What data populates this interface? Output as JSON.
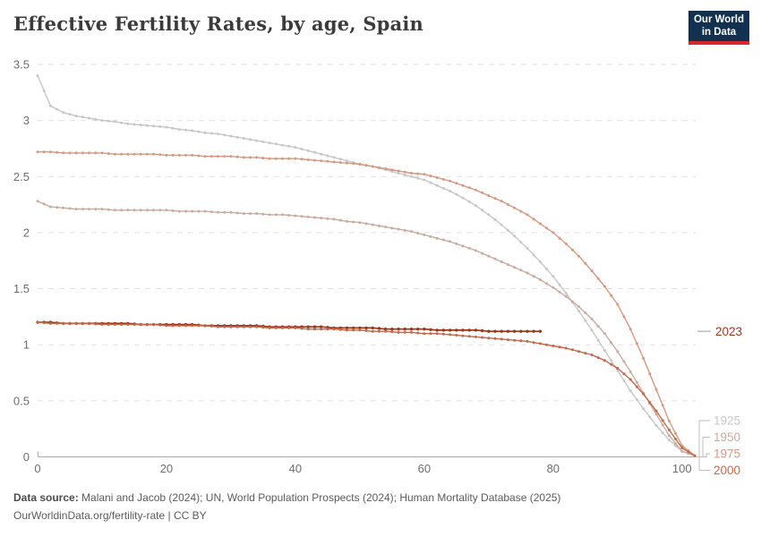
{
  "header": {
    "title": "Effective Fertility Rates, by age, Spain",
    "logo": {
      "line1": "Our World",
      "line2": "in Data",
      "bg_color": "#12304f",
      "accent_color": "#d7282f"
    }
  },
  "footer": {
    "datasource_label": "Data source:",
    "datasource_text": " Malani and Jacob (2024); UN, World Population Prospects (2024); Human Mortality Database (2025)",
    "license_line": "OurWorldinData.org/fertility-rate | CC BY"
  },
  "chart_data": {
    "type": "line",
    "title": "Effective Fertility Rates, by age, Spain",
    "xlabel": "",
    "ylabel": "",
    "xlim": [
      0,
      102
    ],
    "ylim": [
      0,
      3.5
    ],
    "x_ticks": [
      0,
      20,
      40,
      60,
      80,
      100
    ],
    "y_ticks": [
      0,
      0.5,
      1,
      1.5,
      2,
      2.5,
      3,
      3.5
    ],
    "grid": "horizontal-dashed",
    "legend_position": "labels-at-right-edge",
    "axis_color": "#a9a9a9",
    "grid_color": "#e2e2e2",
    "tick_label_color": "#6e6e6e",
    "connector_color": "#bdbdbd",
    "series": [
      {
        "name": "1925",
        "color": "#c7c7c7",
        "age_start": 0,
        "age_step": 2,
        "values": [
          3.4,
          3.13,
          3.07,
          3.04,
          3.02,
          3.0,
          2.99,
          2.97,
          2.96,
          2.95,
          2.94,
          2.92,
          2.91,
          2.89,
          2.88,
          2.86,
          2.84,
          2.82,
          2.8,
          2.78,
          2.76,
          2.73,
          2.7,
          2.67,
          2.64,
          2.61,
          2.59,
          2.56,
          2.53,
          2.5,
          2.47,
          2.42,
          2.37,
          2.31,
          2.24,
          2.16,
          2.07,
          1.97,
          1.86,
          1.74,
          1.61,
          1.46,
          1.3,
          1.13,
          0.95,
          0.77,
          0.59,
          0.43,
          0.28,
          0.15,
          0.05,
          0.01
        ]
      },
      {
        "name": "1950",
        "color": "#c9aca1",
        "age_start": 0,
        "age_step": 2,
        "values": [
          2.28,
          2.23,
          2.22,
          2.21,
          2.21,
          2.21,
          2.2,
          2.2,
          2.2,
          2.2,
          2.2,
          2.19,
          2.19,
          2.19,
          2.18,
          2.18,
          2.17,
          2.17,
          2.16,
          2.16,
          2.15,
          2.14,
          2.13,
          2.12,
          2.1,
          2.09,
          2.07,
          2.05,
          2.03,
          2.01,
          1.98,
          1.95,
          1.92,
          1.88,
          1.84,
          1.79,
          1.74,
          1.69,
          1.64,
          1.58,
          1.51,
          1.43,
          1.34,
          1.23,
          1.1,
          0.94,
          0.76,
          0.57,
          0.38,
          0.19,
          0.05,
          0.01
        ]
      },
      {
        "name": "1975",
        "color": "#d49a83",
        "age_start": 0,
        "age_step": 2,
        "values": [
          2.72,
          2.72,
          2.71,
          2.71,
          2.71,
          2.71,
          2.7,
          2.7,
          2.7,
          2.7,
          2.69,
          2.69,
          2.69,
          2.68,
          2.68,
          2.68,
          2.67,
          2.67,
          2.66,
          2.66,
          2.66,
          2.65,
          2.64,
          2.63,
          2.62,
          2.61,
          2.59,
          2.57,
          2.55,
          2.53,
          2.52,
          2.49,
          2.46,
          2.42,
          2.38,
          2.33,
          2.28,
          2.22,
          2.16,
          2.08,
          2.0,
          1.9,
          1.79,
          1.66,
          1.52,
          1.36,
          1.14,
          0.88,
          0.6,
          0.32,
          0.1,
          0.01
        ]
      },
      {
        "name": "2000",
        "color": "#bf6a4c",
        "age_start": 0,
        "age_step": 2,
        "values": [
          1.2,
          1.19,
          1.19,
          1.19,
          1.19,
          1.18,
          1.18,
          1.18,
          1.18,
          1.18,
          1.17,
          1.17,
          1.17,
          1.17,
          1.16,
          1.16,
          1.16,
          1.16,
          1.15,
          1.15,
          1.15,
          1.14,
          1.14,
          1.14,
          1.13,
          1.13,
          1.12,
          1.12,
          1.11,
          1.11,
          1.1,
          1.1,
          1.09,
          1.08,
          1.07,
          1.06,
          1.05,
          1.04,
          1.03,
          1.01,
          0.99,
          0.97,
          0.94,
          0.91,
          0.86,
          0.79,
          0.69,
          0.56,
          0.41,
          0.24,
          0.08,
          0.01
        ]
      },
      {
        "name": "2023",
        "color": "#9c3717",
        "age_start": 0,
        "age_step": 2,
        "values": [
          1.2,
          1.2,
          1.19,
          1.19,
          1.19,
          1.19,
          1.19,
          1.19,
          1.18,
          1.18,
          1.18,
          1.18,
          1.18,
          1.17,
          1.17,
          1.17,
          1.17,
          1.17,
          1.16,
          1.16,
          1.16,
          1.16,
          1.16,
          1.15,
          1.15,
          1.15,
          1.15,
          1.14,
          1.14,
          1.14,
          1.14,
          1.13,
          1.13,
          1.13,
          1.13,
          1.12,
          1.12,
          1.12,
          1.12,
          1.12
        ]
      }
    ]
  }
}
